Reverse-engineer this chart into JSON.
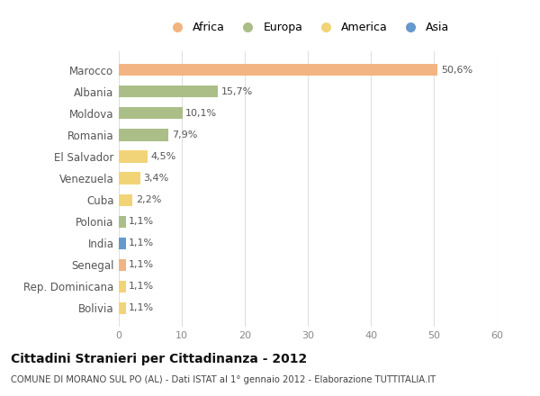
{
  "categories": [
    "Marocco",
    "Albania",
    "Moldova",
    "Romania",
    "El Salvador",
    "Venezuela",
    "Cuba",
    "Polonia",
    "India",
    "Senegal",
    "Rep. Dominicana",
    "Bolivia"
  ],
  "values": [
    50.6,
    15.7,
    10.1,
    7.9,
    4.5,
    3.4,
    2.2,
    1.1,
    1.1,
    1.1,
    1.1,
    1.1
  ],
  "labels": [
    "50,6%",
    "15,7%",
    "10,1%",
    "7,9%",
    "4,5%",
    "3,4%",
    "2,2%",
    "1,1%",
    "1,1%",
    "1,1%",
    "1,1%",
    "1,1%"
  ],
  "colors": [
    "#F2B482",
    "#ABBE88",
    "#ABBE88",
    "#ABBE88",
    "#F2D478",
    "#F2D478",
    "#F2D478",
    "#ABBE88",
    "#6699CC",
    "#F2B482",
    "#F2D478",
    "#F2D478"
  ],
  "legend_labels": [
    "Africa",
    "Europa",
    "America",
    "Asia"
  ],
  "legend_colors": [
    "#F2B482",
    "#ABBE88",
    "#F2D478",
    "#6699CC"
  ],
  "title": "Cittadini Stranieri per Cittadinanza - 2012",
  "subtitle": "COMUNE DI MORANO SUL PO (AL) - Dati ISTAT al 1° gennaio 2012 - Elaborazione TUTTITALIA.IT",
  "xlim": [
    0,
    60
  ],
  "xticks": [
    0,
    10,
    20,
    30,
    40,
    50,
    60
  ],
  "background_color": "#ffffff",
  "grid_color": "#e0e0e0",
  "bar_height": 0.55
}
